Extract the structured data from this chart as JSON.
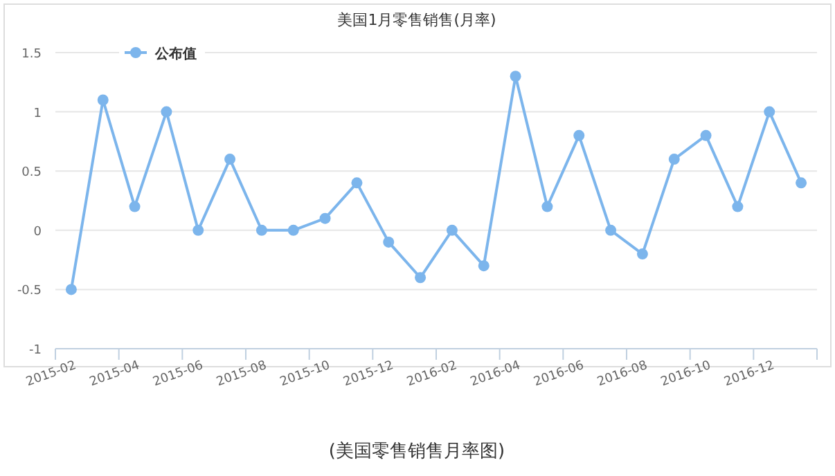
{
  "chart_data": {
    "type": "line",
    "title": "美国1月零售销售(月率)",
    "categories": [
      "2015-02",
      null,
      "2015-04",
      null,
      "2015-06",
      null,
      "2015-08",
      null,
      "2015-10",
      null,
      "2015-12",
      null,
      "2016-02",
      null,
      "2016-04",
      null,
      "2016-06",
      null,
      "2016-08",
      null,
      "2016-10",
      null,
      "2016-12",
      null
    ],
    "series": [
      {
        "name": "公布值",
        "color": "#7cb5ec",
        "values": [
          -0.5,
          1.1,
          0.2,
          1.0,
          0,
          0.6,
          0,
          0,
          0.1,
          0.4,
          -0.1,
          -0.4,
          0,
          -0.3,
          1.3,
          0.2,
          0.8,
          0,
          -0.2,
          0.6,
          0.8,
          0.2,
          1.0,
          0.4
        ]
      }
    ],
    "ylim": [
      -1,
      1.5
    ],
    "yticks": [
      {
        "value": -1,
        "label": "-1"
      },
      {
        "value": -0.5,
        "label": "-0.5"
      },
      {
        "value": 0,
        "label": "0"
      },
      {
        "value": 0.5,
        "label": "0.5"
      },
      {
        "value": 1,
        "label": "1"
      },
      {
        "value": 1.5,
        "label": "1.5"
      }
    ],
    "grid": "y",
    "legend": "top left",
    "marker": "circle",
    "line_style": "solid",
    "annotations": [
      "(美国零售销售月率图)"
    ]
  }
}
